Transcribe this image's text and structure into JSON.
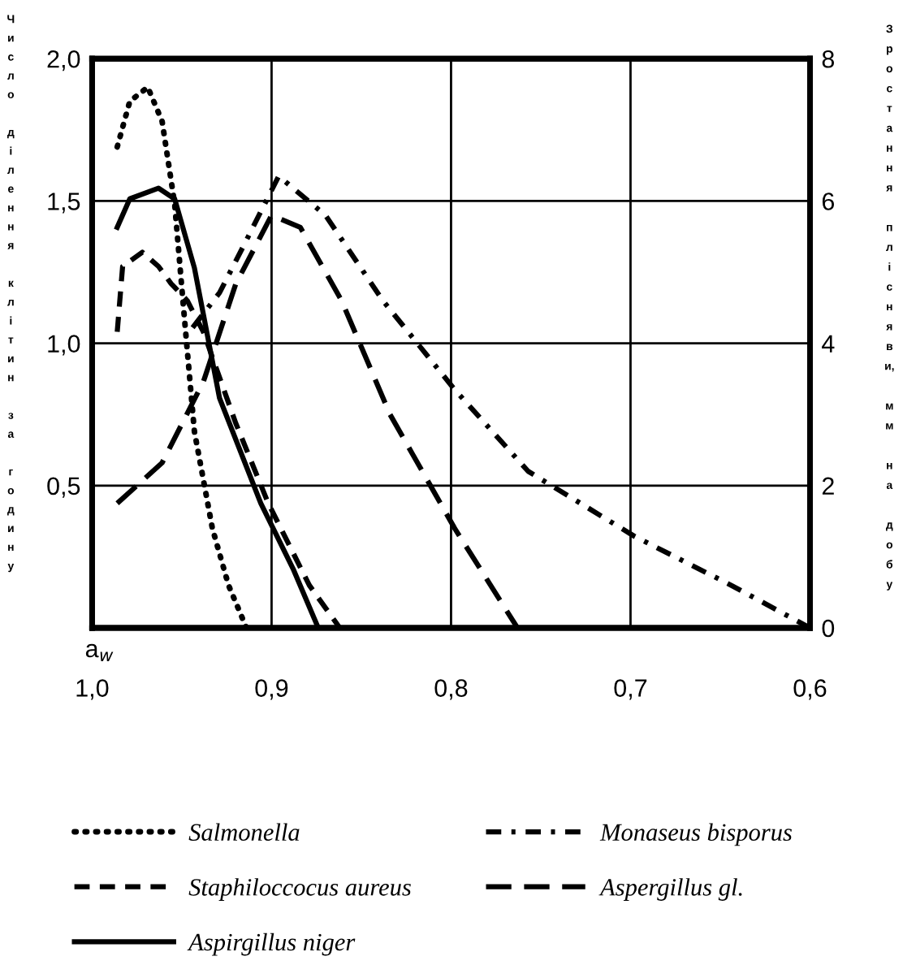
{
  "chart_data": {
    "type": "line",
    "xlabel": "a$_{w}$",
    "ylabel": "Число ділення клітин за годину",
    "y2label": "Зростання плісняви, мм на добу",
    "xlim": [
      1.0,
      0.6
    ],
    "xticks": [
      {
        "value": 1.0,
        "label": "1,0"
      },
      {
        "value": 0.9,
        "label": "0,9"
      },
      {
        "value": 0.8,
        "label": "0,8"
      },
      {
        "value": 0.7,
        "label": "0,7"
      },
      {
        "value": 0.6,
        "label": "0,6"
      }
    ],
    "ylim": [
      0,
      2.0
    ],
    "yticks": [
      {
        "value": 0.5,
        "label": "0,5"
      },
      {
        "value": 1.0,
        "label": "1,0"
      },
      {
        "value": 1.5,
        "label": "1,5"
      },
      {
        "value": 2.0,
        "label": "2,0"
      }
    ],
    "y2lim": [
      0,
      8
    ],
    "y2ticks": [
      0,
      2,
      4,
      6,
      8
    ],
    "grid": true,
    "legend": "bottom",
    "series": [
      {
        "name": "Salmonella",
        "color": "#000000",
        "line_style": "dotted",
        "x": [
          0.986,
          0.979,
          0.969,
          0.961,
          0.954,
          0.949,
          0.943,
          0.933,
          0.924,
          0.914
        ],
        "values": [
          1.69,
          1.85,
          1.9,
          1.78,
          1.49,
          1.12,
          0.69,
          0.35,
          0.15,
          0
        ]
      },
      {
        "name": "Staphiloccocus aureus",
        "color": "#000000",
        "line_style": "dashed",
        "x": [
          0.986,
          0.983,
          0.972,
          0.963,
          0.956,
          0.947,
          0.938,
          0.92,
          0.902,
          0.879,
          0.862
        ],
        "values": [
          1.04,
          1.27,
          1.32,
          1.27,
          1.21,
          1.15,
          1.04,
          0.72,
          0.44,
          0.15,
          0
        ]
      },
      {
        "name": "Aspirgillus niger",
        "color": "#000000",
        "line_style": "solid",
        "axis": "y2",
        "x": [
          0.986,
          0.979,
          0.963,
          0.954,
          0.943,
          0.929,
          0.906,
          0.888,
          0.874
        ],
        "values": [
          5.63,
          6.03,
          6.18,
          6.03,
          5.06,
          3.23,
          1.75,
          0.83,
          0
        ]
      },
      {
        "name": "Monaseus bisporus",
        "color": "#000000",
        "line_style": "dashdot",
        "axis": "y2",
        "x": [
          0.944,
          0.929,
          0.915,
          0.896,
          0.87,
          0.838,
          0.798,
          0.757,
          0.698,
          0.644,
          0.6
        ],
        "values": [
          4.22,
          4.71,
          5.4,
          6.35,
          5.8,
          4.6,
          3.35,
          2.2,
          1.29,
          0.6,
          0
        ]
      },
      {
        "name": "Aspergillus gl.",
        "color": "#000000",
        "line_style": "longdash",
        "axis": "y2",
        "x": [
          0.986,
          0.961,
          0.938,
          0.92,
          0.9,
          0.884,
          0.861,
          0.834,
          0.798,
          0.763
        ],
        "values": [
          1.75,
          2.32,
          3.46,
          4.83,
          5.8,
          5.63,
          4.6,
          3.0,
          1.4,
          0
        ]
      }
    ]
  }
}
